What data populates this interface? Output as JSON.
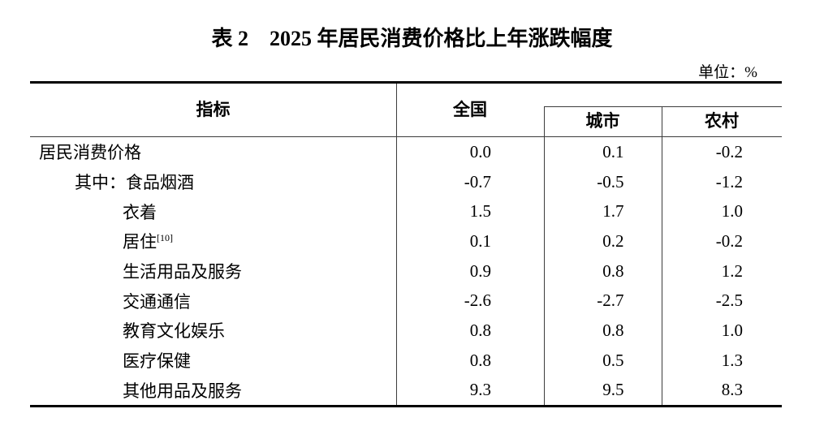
{
  "title": "表 2　2025 年居民消费价格比上年涨跌幅度",
  "unit_label": "单位：%",
  "table": {
    "header": {
      "indicator": "指标",
      "national": "全国",
      "urban": "城市",
      "rural": "农村"
    },
    "rows": [
      {
        "label": "居民消费价格",
        "national": "0.0",
        "urban": "0.1",
        "rural": "-0.2"
      },
      {
        "label": "其中：食品烟酒",
        "national": "-0.7",
        "urban": "-0.5",
        "rural": "-1.2"
      },
      {
        "label": "衣着",
        "national": "1.5",
        "urban": "1.7",
        "rural": "1.0"
      },
      {
        "label": "居住",
        "sup": "[10]",
        "national": "0.1",
        "urban": "0.2",
        "rural": "-0.2"
      },
      {
        "label": "生活用品及服务",
        "national": "0.9",
        "urban": "0.8",
        "rural": "1.2"
      },
      {
        "label": "交通通信",
        "national": "-2.6",
        "urban": "-2.7",
        "rural": "-2.5"
      },
      {
        "label": "教育文化娱乐",
        "national": "0.8",
        "urban": "0.8",
        "rural": "1.0"
      },
      {
        "label": "医疗保健",
        "national": "0.8",
        "urban": "0.5",
        "rural": "1.3"
      },
      {
        "label": "其他用品及服务",
        "national": "9.3",
        "urban": "9.5",
        "rural": "8.3"
      }
    ]
  },
  "chart_data": {
    "type": "table",
    "title": "表 2　2025 年居民消费价格比上年涨跌幅度",
    "unit": "%",
    "columns": [
      "指标",
      "全国",
      "城市",
      "农村"
    ],
    "rows": [
      [
        "居民消费价格",
        0.0,
        0.1,
        -0.2
      ],
      [
        "其中：食品烟酒",
        -0.7,
        -0.5,
        -1.2
      ],
      [
        "衣着",
        1.5,
        1.7,
        1.0
      ],
      [
        "居住[10]",
        0.1,
        0.2,
        -0.2
      ],
      [
        "生活用品及服务",
        0.9,
        0.8,
        1.2
      ],
      [
        "交通通信",
        -2.6,
        -2.7,
        -2.5
      ],
      [
        "教育文化娱乐",
        0.8,
        0.8,
        1.0
      ],
      [
        "医疗保健",
        0.8,
        0.5,
        1.3
      ],
      [
        "其他用品及服务",
        9.3,
        9.5,
        8.3
      ]
    ]
  }
}
